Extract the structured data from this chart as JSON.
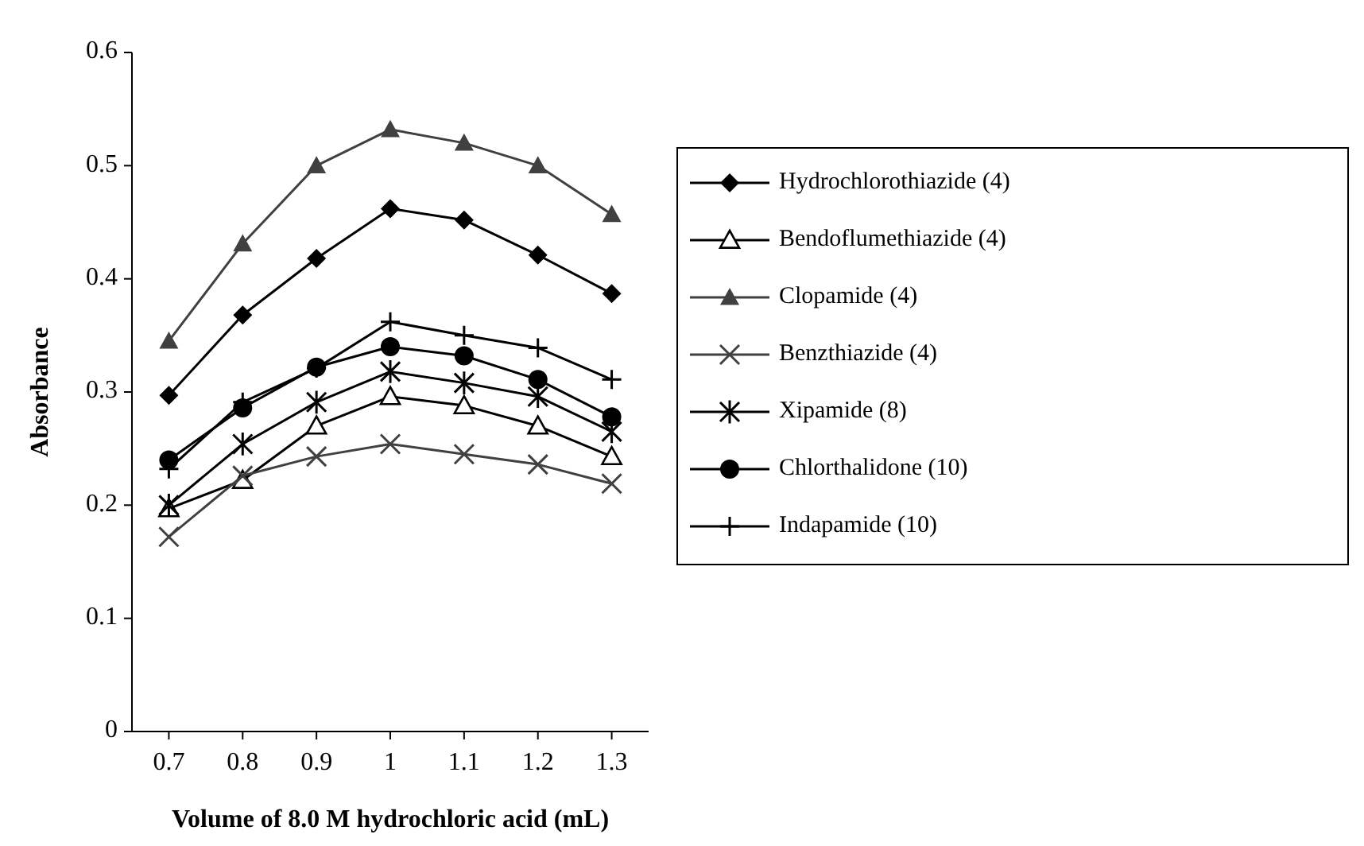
{
  "chart_data": {
    "type": "line",
    "xlabel": "Volume of 8.0 M hydrochloric acid (mL)",
    "ylabel": "Absorbance",
    "x": [
      0.7,
      0.8,
      0.9,
      1,
      1.1,
      1.2,
      1.3
    ],
    "xlim": [
      0.65,
      1.35
    ],
    "xticks": [
      0.7,
      0.8,
      0.9,
      1,
      1.1,
      1.2,
      1.3
    ],
    "ylim": [
      0,
      0.6
    ],
    "yticks": [
      0,
      0.1,
      0.2,
      0.3,
      0.4,
      0.5,
      0.6
    ],
    "grid": false,
    "legend": "right",
    "line_style": "solid",
    "series": [
      {
        "name": "Hydrochlorothiazide (4)",
        "color": "#000000",
        "marker": "diamond",
        "values": [
          0.297,
          0.368,
          0.418,
          0.462,
          0.452,
          0.421,
          0.387
        ]
      },
      {
        "name": "Bendoflumethiazide (4)",
        "color": "#000000",
        "marker": "triangle-open",
        "values": [
          0.197,
          0.222,
          0.27,
          0.296,
          0.288,
          0.27,
          0.243
        ]
      },
      {
        "name": "Clopamide (4)",
        "color": "#404040",
        "marker": "triangle",
        "values": [
          0.345,
          0.431,
          0.5,
          0.532,
          0.52,
          0.5,
          0.457
        ]
      },
      {
        "name": "Benzthiazide (4)",
        "color": "#404040",
        "marker": "x",
        "values": [
          0.172,
          0.226,
          0.243,
          0.254,
          0.245,
          0.236,
          0.219
        ]
      },
      {
        "name": "Xipamide (8)",
        "color": "#000000",
        "marker": "cross",
        "values": [
          0.2,
          0.254,
          0.291,
          0.318,
          0.308,
          0.296,
          0.265
        ]
      },
      {
        "name": "Chlorthalidone (10)",
        "color": "#000000",
        "marker": "circle",
        "values": [
          0.24,
          0.286,
          0.322,
          0.34,
          0.332,
          0.311,
          0.278
        ]
      },
      {
        "name": "Indapamide (10)",
        "color": "#000000",
        "marker": "plus",
        "values": [
          0.232,
          0.291,
          0.321,
          0.362,
          0.35,
          0.339,
          0.311
        ]
      }
    ]
  }
}
